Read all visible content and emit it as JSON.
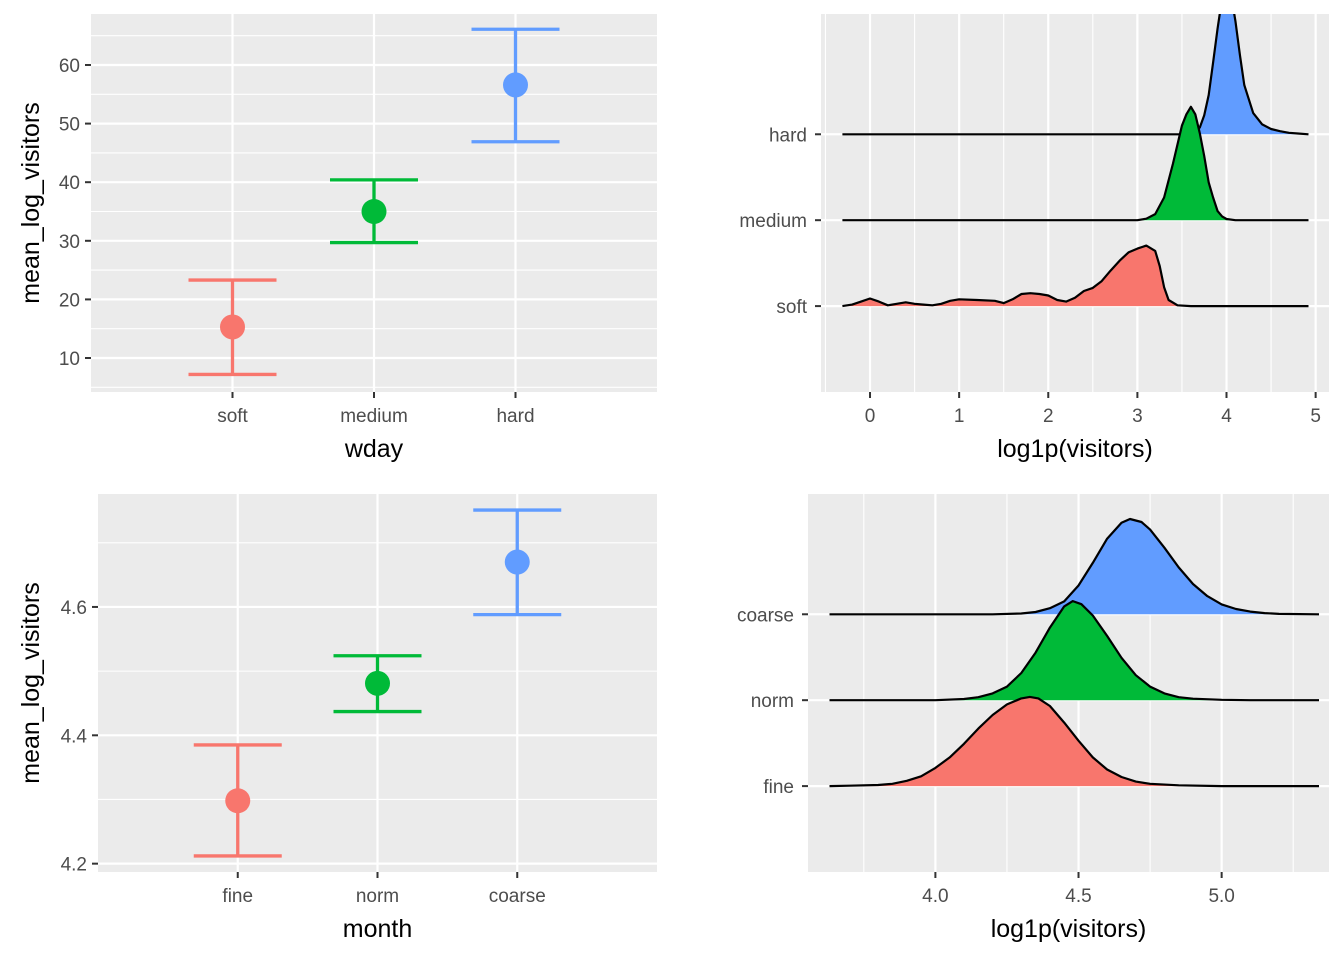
{
  "colors": {
    "panel": "#ebebeb",
    "grid": "#ffffff",
    "low": "#f8766d",
    "mid": "#00ba38",
    "high": "#619cff",
    "text": "#4d4d4d",
    "tick": "#333333"
  },
  "chart_data": [
    {
      "type": "errorbar",
      "xlabel": "wday",
      "ylabel": "mean_log_visitors",
      "categories": [
        "soft",
        "medium",
        "hard"
      ],
      "values": [
        15.3,
        35.0,
        56.6
      ],
      "lower": [
        7.2,
        29.7,
        46.9
      ],
      "upper": [
        23.3,
        40.4,
        66.1
      ],
      "colors": [
        "#f8766d",
        "#00ba38",
        "#619cff"
      ],
      "ylim": [
        4.2,
        68.7
      ],
      "yticks": [
        10,
        20,
        30,
        40,
        50,
        60
      ],
      "yminor": [
        5,
        15,
        25,
        35,
        45,
        55,
        65
      ],
      "grid": true
    },
    {
      "type": "ridgeline",
      "xlabel": "log1p(visitors)",
      "groups": [
        "soft",
        "medium",
        "hard"
      ],
      "fill_colors": [
        "#f8766d",
        "#00ba38",
        "#619cff"
      ],
      "xlim": [
        -0.55,
        5.15
      ],
      "xticks": [
        0,
        1,
        2,
        3,
        4,
        5
      ],
      "xminor": [
        -0.5,
        0.5,
        1.5,
        2.5,
        3.5,
        4.5
      ],
      "baseline_range": [
        -0.31,
        4.92
      ],
      "densities": [
        [
          [
            -0.31,
            0
          ],
          [
            -0.2,
            0.02
          ],
          [
            -0.1,
            0.06
          ],
          [
            0.0,
            0.1
          ],
          [
            0.1,
            0.06
          ],
          [
            0.2,
            0.01
          ],
          [
            0.3,
            0.03
          ],
          [
            0.4,
            0.05
          ],
          [
            0.5,
            0.03
          ],
          [
            0.6,
            0.02
          ],
          [
            0.7,
            0.01
          ],
          [
            0.8,
            0.03
          ],
          [
            0.9,
            0.07
          ],
          [
            1.0,
            0.09
          ],
          [
            1.2,
            0.08
          ],
          [
            1.4,
            0.07
          ],
          [
            1.5,
            0.04
          ],
          [
            1.6,
            0.09
          ],
          [
            1.7,
            0.16
          ],
          [
            1.8,
            0.17
          ],
          [
            1.9,
            0.16
          ],
          [
            2.0,
            0.14
          ],
          [
            2.1,
            0.08
          ],
          [
            2.2,
            0.06
          ],
          [
            2.3,
            0.11
          ],
          [
            2.4,
            0.2
          ],
          [
            2.5,
            0.24
          ],
          [
            2.6,
            0.33
          ],
          [
            2.7,
            0.47
          ],
          [
            2.8,
            0.6
          ],
          [
            2.9,
            0.71
          ],
          [
            3.0,
            0.76
          ],
          [
            3.1,
            0.8
          ],
          [
            3.2,
            0.73
          ],
          [
            3.25,
            0.53
          ],
          [
            3.3,
            0.25
          ],
          [
            3.35,
            0.08
          ],
          [
            3.45,
            0.01
          ],
          [
            3.6,
            0
          ],
          [
            4.92,
            0
          ]
        ],
        [
          [
            -0.31,
            0
          ],
          [
            3.0,
            0
          ],
          [
            3.1,
            0.02
          ],
          [
            3.2,
            0.08
          ],
          [
            3.3,
            0.3
          ],
          [
            3.4,
            0.75
          ],
          [
            3.5,
            1.25
          ],
          [
            3.55,
            1.4
          ],
          [
            3.6,
            1.5
          ],
          [
            3.65,
            1.4
          ],
          [
            3.7,
            1.15
          ],
          [
            3.75,
            0.85
          ],
          [
            3.8,
            0.5
          ],
          [
            3.85,
            0.3
          ],
          [
            3.9,
            0.12
          ],
          [
            3.95,
            0.05
          ],
          [
            4.0,
            0.015
          ],
          [
            4.1,
            0
          ],
          [
            4.92,
            0
          ]
        ],
        [
          [
            -0.31,
            0
          ],
          [
            3.6,
            0
          ],
          [
            3.65,
            0.03
          ],
          [
            3.7,
            0.09
          ],
          [
            3.75,
            0.25
          ],
          [
            3.8,
            0.52
          ],
          [
            3.85,
            0.95
          ],
          [
            3.9,
            1.4
          ],
          [
            3.95,
            1.8
          ],
          [
            4.0,
            1.95
          ],
          [
            4.05,
            1.85
          ],
          [
            4.1,
            1.5
          ],
          [
            4.15,
            1.05
          ],
          [
            4.2,
            0.65
          ],
          [
            4.3,
            0.28
          ],
          [
            4.4,
            0.13
          ],
          [
            4.5,
            0.07
          ],
          [
            4.6,
            0.04
          ],
          [
            4.7,
            0.02
          ],
          [
            4.8,
            0.01
          ],
          [
            4.92,
            0
          ]
        ]
      ],
      "grid": true
    },
    {
      "type": "errorbar",
      "xlabel": "month",
      "ylabel": "mean_log_visitors",
      "categories": [
        "fine",
        "norm",
        "coarse"
      ],
      "values": [
        4.298,
        4.481,
        4.67
      ],
      "lower": [
        4.212,
        4.437,
        4.588
      ],
      "upper": [
        4.385,
        4.524,
        4.751
      ],
      "colors": [
        "#f8766d",
        "#00ba38",
        "#619cff"
      ],
      "ylim": [
        4.187,
        4.776
      ],
      "yticks": [
        4.2,
        4.4,
        4.6
      ],
      "yminor": [
        4.3,
        4.5,
        4.7
      ],
      "grid": true
    },
    {
      "type": "ridgeline",
      "xlabel": "log1p(visitors)",
      "groups": [
        "fine",
        "norm",
        "coarse"
      ],
      "fill_colors": [
        "#f8766d",
        "#00ba38",
        "#619cff"
      ],
      "xlim": [
        3.555,
        5.375
      ],
      "xticks": [
        4.0,
        4.5,
        5.0
      ],
      "xminor": [
        3.75,
        4.25,
        4.75,
        5.25
      ],
      "baseline_range": [
        3.63,
        5.34
      ],
      "densities": [
        [
          [
            3.63,
            0
          ],
          [
            3.7,
            0.005
          ],
          [
            3.8,
            0.015
          ],
          [
            3.85,
            0.03
          ],
          [
            3.9,
            0.07
          ],
          [
            3.95,
            0.13
          ],
          [
            4.0,
            0.24
          ],
          [
            4.05,
            0.38
          ],
          [
            4.1,
            0.56
          ],
          [
            4.15,
            0.76
          ],
          [
            4.2,
            0.94
          ],
          [
            4.25,
            1.08
          ],
          [
            4.3,
            1.16
          ],
          [
            4.33,
            1.18
          ],
          [
            4.36,
            1.16
          ],
          [
            4.4,
            1.06
          ],
          [
            4.45,
            0.84
          ],
          [
            4.5,
            0.6
          ],
          [
            4.55,
            0.38
          ],
          [
            4.6,
            0.22
          ],
          [
            4.65,
            0.12
          ],
          [
            4.7,
            0.06
          ],
          [
            4.75,
            0.03
          ],
          [
            4.85,
            0.01
          ],
          [
            5.0,
            0
          ],
          [
            5.34,
            0
          ]
        ],
        [
          [
            3.63,
            0
          ],
          [
            4.0,
            0
          ],
          [
            4.1,
            0.015
          ],
          [
            4.15,
            0.04
          ],
          [
            4.2,
            0.09
          ],
          [
            4.25,
            0.18
          ],
          [
            4.3,
            0.36
          ],
          [
            4.35,
            0.63
          ],
          [
            4.4,
            0.96
          ],
          [
            4.45,
            1.24
          ],
          [
            4.48,
            1.31
          ],
          [
            4.51,
            1.27
          ],
          [
            4.55,
            1.12
          ],
          [
            4.6,
            0.85
          ],
          [
            4.65,
            0.56
          ],
          [
            4.7,
            0.33
          ],
          [
            4.75,
            0.18
          ],
          [
            4.8,
            0.09
          ],
          [
            4.85,
            0.04
          ],
          [
            4.9,
            0.02
          ],
          [
            5.0,
            0.005
          ],
          [
            5.1,
            0
          ],
          [
            5.34,
            0
          ]
        ],
        [
          [
            3.63,
            0
          ],
          [
            4.2,
            0
          ],
          [
            4.3,
            0.01
          ],
          [
            4.35,
            0.03
          ],
          [
            4.4,
            0.08
          ],
          [
            4.45,
            0.17
          ],
          [
            4.5,
            0.38
          ],
          [
            4.55,
            0.68
          ],
          [
            4.6,
            1.0
          ],
          [
            4.65,
            1.21
          ],
          [
            4.68,
            1.26
          ],
          [
            4.72,
            1.22
          ],
          [
            4.75,
            1.12
          ],
          [
            4.8,
            0.88
          ],
          [
            4.85,
            0.62
          ],
          [
            4.9,
            0.4
          ],
          [
            4.95,
            0.24
          ],
          [
            5.0,
            0.13
          ],
          [
            5.05,
            0.07
          ],
          [
            5.1,
            0.035
          ],
          [
            5.15,
            0.015
          ],
          [
            5.2,
            0.005
          ],
          [
            5.34,
            0
          ]
        ]
      ],
      "grid": true
    }
  ]
}
